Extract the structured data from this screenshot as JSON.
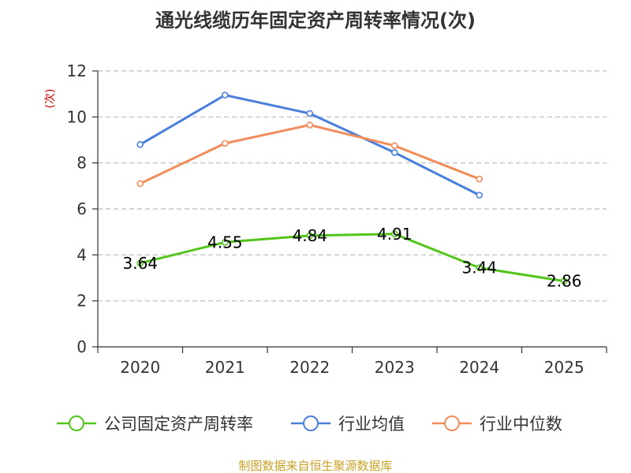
{
  "chart_data": {
    "type": "line",
    "title": "通光线缆历年固定资产周转率情况(次)",
    "ylabel": "(次)",
    "xlabel": "",
    "ylim": [
      0,
      12
    ],
    "yticks": [
      0,
      2,
      4,
      6,
      8,
      10,
      12
    ],
    "categories": [
      "2020",
      "2021",
      "2022",
      "2023",
      "2024",
      "2025"
    ],
    "grid": true,
    "legend_position": "bottom",
    "series": [
      {
        "name": "公司固定资产周转率",
        "color": "#52c41a",
        "values": [
          3.64,
          4.55,
          4.84,
          4.91,
          3.44,
          2.86
        ],
        "labels": [
          "3.64",
          "4.55",
          "4.84",
          "4.91",
          "3.44",
          "2.86"
        ]
      },
      {
        "name": "行业均值",
        "color": "#4a7fdc",
        "values": [
          8.8,
          10.95,
          10.15,
          8.45,
          6.6,
          null
        ]
      },
      {
        "name": "行业中位数",
        "color": "#f28c5a",
        "values": [
          7.1,
          8.85,
          9.65,
          8.75,
          7.3,
          null
        ]
      }
    ],
    "source": "制图数据来自恒生聚源数据库"
  },
  "colors": {
    "ylabel": "#cc0000",
    "source": "#c9a227",
    "grid": "#bbbbbb",
    "axis": "#333333"
  }
}
